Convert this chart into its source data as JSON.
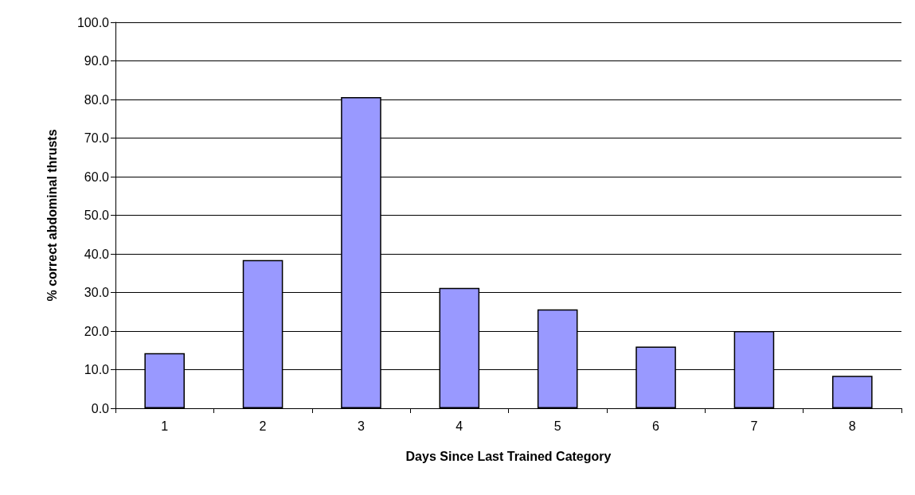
{
  "chart_data": {
    "type": "bar",
    "xlabel": "Days Since Last Trained Category",
    "ylabel": "% correct abdominal thrusts",
    "categories": [
      "1",
      "2",
      "3",
      "4",
      "5",
      "6",
      "7",
      "8"
    ],
    "values": [
      14.3,
      38.4,
      80.6,
      31.2,
      25.6,
      16.0,
      20.0,
      8.4
    ],
    "color": "#9999ff",
    "ylim": [
      0,
      100
    ],
    "yticks": [
      {
        "value": 0,
        "label": "0.0"
      },
      {
        "value": 10,
        "label": "10.0"
      },
      {
        "value": 20,
        "label": "20.0"
      },
      {
        "value": 30,
        "label": "30.0"
      },
      {
        "value": 40,
        "label": "40.0"
      },
      {
        "value": 50,
        "label": "50.0"
      },
      {
        "value": 60,
        "label": "60.0"
      },
      {
        "value": 70,
        "label": "70.0"
      },
      {
        "value": 80,
        "label": "80.0"
      },
      {
        "value": 90,
        "label": "90.0"
      },
      {
        "value": 100,
        "label": "100.0"
      }
    ],
    "grid": "y"
  }
}
